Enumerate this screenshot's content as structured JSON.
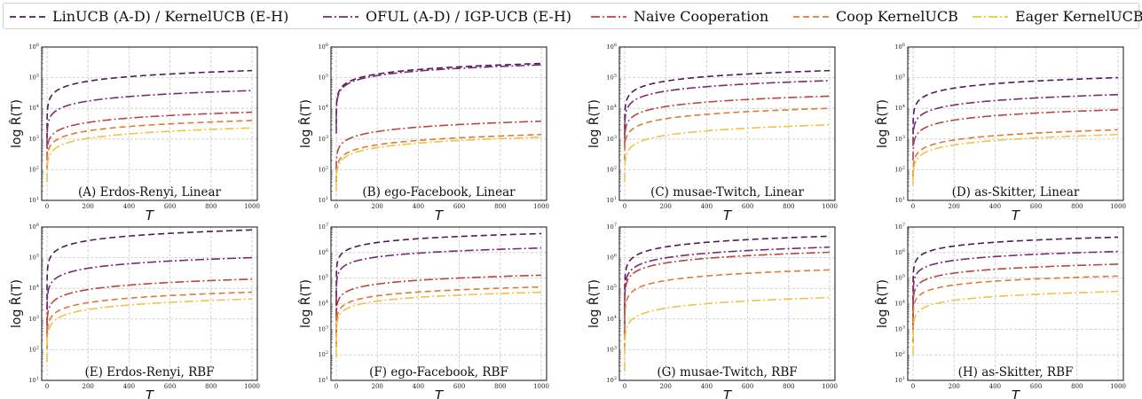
{
  "legend": [
    {
      "label": "LinUCB (A-D) / KernelUCB (E-H)",
      "color": "#4e1b57",
      "dash": "7,4"
    },
    {
      "label": "OFUL (A-D) / IGP-UCB (E-H)",
      "color": "#7a2a70",
      "dash": "10,3,2,3"
    },
    {
      "label": "Naive Cooperation",
      "color": "#b8453f",
      "dash": "10,3,2,3"
    },
    {
      "label": "Coop KernelUCB",
      "color": "#dd7b33",
      "dash": "7,4"
    },
    {
      "label": "Eager KernelUCB",
      "color": "#f2c244",
      "dash": "10,3,2,3"
    }
  ],
  "chart_data": [
    {
      "type": "line",
      "title": "(A) Erdos-Renyi, Linear",
      "xlabel": "T",
      "ylabel": "log R̂(T)",
      "xlim": [
        0,
        1000
      ],
      "xticks": [
        0,
        200,
        400,
        600,
        800,
        1000
      ],
      "ylim_exp": [
        1,
        6
      ],
      "yscale": "log",
      "grid": true,
      "series": [
        {
          "legend_index": 0,
          "start": 1000,
          "end": 170000
        },
        {
          "legend_index": 1,
          "start": 500,
          "end": 38000
        },
        {
          "legend_index": 2,
          "start": 200,
          "end": 7500
        },
        {
          "legend_index": 3,
          "start": 100,
          "end": 4000
        },
        {
          "legend_index": 4,
          "start": 40,
          "end": 2300
        }
      ]
    },
    {
      "type": "line",
      "title": "(B) ego-Facebook, Linear",
      "xlabel": "T",
      "ylabel": "log R̂(T)",
      "xlim": [
        0,
        1000
      ],
      "xticks": [
        0,
        200,
        400,
        600,
        800,
        1000
      ],
      "ylim_exp": [
        1,
        6
      ],
      "yscale": "log",
      "grid": true,
      "series": [
        {
          "legend_index": 0,
          "start": 3000,
          "end": 290000
        },
        {
          "legend_index": 1,
          "start": 1500,
          "end": 260000
        },
        {
          "legend_index": 2,
          "start": 100,
          "end": 3800
        },
        {
          "legend_index": 3,
          "start": 40,
          "end": 1400
        },
        {
          "legend_index": 4,
          "start": 20,
          "end": 1150
        }
      ]
    },
    {
      "type": "line",
      "title": "(C) musae-Twitch, Linear",
      "xlabel": "T",
      "ylabel": "log R̂(T)",
      "xlim": [
        0,
        1000
      ],
      "xticks": [
        0,
        200,
        400,
        600,
        800,
        1000
      ],
      "ylim_exp": [
        1,
        6
      ],
      "yscale": "log",
      "grid": true,
      "series": [
        {
          "legend_index": 0,
          "start": 2000,
          "end": 170000
        },
        {
          "legend_index": 1,
          "start": 1000,
          "end": 80000
        },
        {
          "legend_index": 2,
          "start": 500,
          "end": 25000
        },
        {
          "legend_index": 3,
          "start": 200,
          "end": 10000
        },
        {
          "legend_index": 4,
          "start": 40,
          "end": 2900
        }
      ]
    },
    {
      "type": "line",
      "title": "(D) as-Skitter, Linear",
      "xlabel": "T",
      "ylabel": "log R̂(T)",
      "xlim": [
        0,
        1000
      ],
      "xticks": [
        0,
        200,
        400,
        600,
        800,
        1000
      ],
      "ylim_exp": [
        1,
        6
      ],
      "yscale": "log",
      "grid": true,
      "series": [
        {
          "legend_index": 0,
          "start": 1500,
          "end": 100000
        },
        {
          "legend_index": 1,
          "start": 600,
          "end": 28000
        },
        {
          "legend_index": 2,
          "start": 200,
          "end": 9000
        },
        {
          "legend_index": 3,
          "start": 60,
          "end": 2000
        },
        {
          "legend_index": 4,
          "start": 30,
          "end": 1400
        }
      ]
    },
    {
      "type": "line",
      "title": "(E) Erdos-Renyi, RBF",
      "xlabel": "T",
      "ylabel": "log R̂(T)",
      "xlim": [
        0,
        1000
      ],
      "xticks": [
        0,
        200,
        400,
        600,
        800,
        1000
      ],
      "ylim_exp": [
        1,
        6
      ],
      "yscale": "log",
      "grid": true,
      "series": [
        {
          "legend_index": 0,
          "start": 2000,
          "end": 800000
        },
        {
          "legend_index": 1,
          "start": 600,
          "end": 100000
        },
        {
          "legend_index": 2,
          "start": 300,
          "end": 20000
        },
        {
          "legend_index": 3,
          "start": 100,
          "end": 7500
        },
        {
          "legend_index": 4,
          "start": 40,
          "end": 4500
        }
      ]
    },
    {
      "type": "line",
      "title": "(F) ego-Facebook, RBF",
      "xlabel": "T",
      "ylabel": "log R̂(T)",
      "xlim": [
        0,
        1000
      ],
      "xticks": [
        0,
        200,
        400,
        600,
        800,
        1000
      ],
      "ylim_exp": [
        1,
        7
      ],
      "yscale": "log",
      "grid": true,
      "series": [
        {
          "legend_index": 0,
          "start": 8000,
          "end": 5500000
        },
        {
          "legend_index": 1,
          "start": 3000,
          "end": 1500000
        },
        {
          "legend_index": 2,
          "start": 500,
          "end": 130000
        },
        {
          "legend_index": 3,
          "start": 200,
          "end": 45000
        },
        {
          "legend_index": 4,
          "start": 80,
          "end": 28000
        }
      ]
    },
    {
      "type": "line",
      "title": "(G) musae-Twitch, RBF",
      "xlabel": "T",
      "ylabel": "log R̂(T)",
      "xlim": [
        0,
        1000
      ],
      "xticks": [
        0,
        200,
        400,
        600,
        800,
        1000
      ],
      "ylim_exp": [
        2,
        7
      ],
      "yscale": "log",
      "grid": true,
      "series": [
        {
          "legend_index": 0,
          "start": 10000,
          "end": 5000000
        },
        {
          "legend_index": 1,
          "start": 5000,
          "end": 2200000
        },
        {
          "legend_index": 2,
          "start": 3000,
          "end": 1500000
        },
        {
          "legend_index": 3,
          "start": 1000,
          "end": 400000
        },
        {
          "legend_index": 4,
          "start": 200,
          "end": 50000
        }
      ]
    },
    {
      "type": "line",
      "title": "(H) as-Skitter, RBF",
      "xlabel": "T",
      "ylabel": "log R̂(T)",
      "xlim": [
        0,
        1000
      ],
      "xticks": [
        0,
        200,
        400,
        600,
        800,
        1000
      ],
      "ylim_exp": [
        1,
        7
      ],
      "yscale": "log",
      "grid": true,
      "series": [
        {
          "legend_index": 0,
          "start": 5000,
          "end": 4000000
        },
        {
          "legend_index": 1,
          "start": 2000,
          "end": 1100000
        },
        {
          "legend_index": 2,
          "start": 1000,
          "end": 350000
        },
        {
          "legend_index": 3,
          "start": 300,
          "end": 120000
        },
        {
          "legend_index": 4,
          "start": 100,
          "end": 30000
        }
      ]
    }
  ]
}
